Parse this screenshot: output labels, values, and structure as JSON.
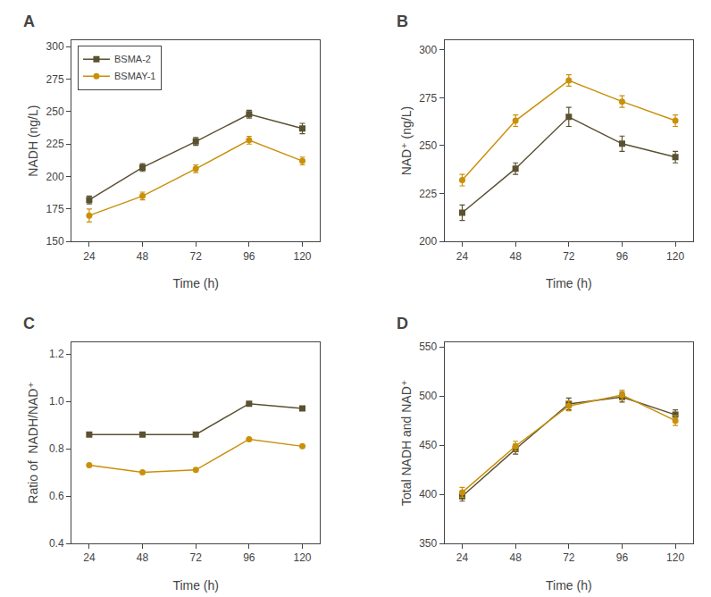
{
  "chart_data": [
    {
      "type": "line",
      "annotations": [
        "A"
      ],
      "xlabel": "Time (h)",
      "ylabel": "NADH (ng/L)",
      "x": [
        24,
        48,
        72,
        96,
        120
      ],
      "xlim": [
        16,
        128
      ],
      "xticks": [
        24,
        48,
        72,
        96,
        120
      ],
      "ylim": [
        150,
        305
      ],
      "yticks": [
        150,
        175,
        200,
        225,
        250,
        275,
        300
      ],
      "grid": false,
      "legend": "upper left",
      "series": [
        {
          "name": "BSMA-2",
          "color": "#5a5130",
          "marker": "square",
          "values": [
            182,
            207,
            227,
            248,
            237
          ],
          "error": [
            3,
            3,
            3,
            3,
            4
          ]
        },
        {
          "name": "BSMAY-1",
          "color": "#c9900a",
          "marker": "circle",
          "values": [
            170,
            185,
            206,
            228,
            212
          ],
          "error": [
            5,
            3,
            3,
            3,
            3
          ]
        }
      ]
    },
    {
      "type": "line",
      "annotations": [
        "B"
      ],
      "xlabel": "Time (h)",
      "ylabel": "NAD⁺ (ng/L)",
      "x": [
        24,
        48,
        72,
        96,
        120
      ],
      "xlim": [
        16,
        128
      ],
      "xticks": [
        24,
        48,
        72,
        96,
        120
      ],
      "ylim": [
        200,
        305
      ],
      "yticks": [
        200,
        225,
        250,
        275,
        300
      ],
      "grid": false,
      "series": [
        {
          "name": "BSMA-2",
          "color": "#5a5130",
          "marker": "square",
          "values": [
            215,
            238,
            265,
            251,
            244
          ],
          "error": [
            4,
            3,
            5,
            4,
            3
          ]
        },
        {
          "name": "BSMAY-1",
          "color": "#c9900a",
          "marker": "circle",
          "values": [
            232,
            263,
            284,
            273,
            263
          ],
          "error": [
            3,
            3,
            3,
            3,
            3
          ]
        }
      ]
    },
    {
      "type": "line",
      "annotations": [
        "C"
      ],
      "xlabel": "Time (h)",
      "ylabel": "Ratio of  NADH/NAD⁺",
      "x": [
        24,
        48,
        72,
        96,
        120
      ],
      "xlim": [
        16,
        128
      ],
      "xticks": [
        24,
        48,
        72,
        96,
        120
      ],
      "ylim": [
        0.4,
        1.25
      ],
      "yticks": [
        0.4,
        0.6,
        0.8,
        {
          "value": 1.0,
          "label": "1.0"
        },
        1.2
      ],
      "grid": false,
      "series": [
        {
          "name": "BSMA-2",
          "color": "#5a5130",
          "marker": "square",
          "values": [
            0.86,
            0.86,
            0.86,
            0.99,
            0.97
          ],
          "error": [
            0.0,
            0.0,
            0.0,
            0.0,
            0.0
          ]
        },
        {
          "name": "BSMAY-1",
          "color": "#c9900a",
          "marker": "circle",
          "values": [
            0.73,
            0.7,
            0.71,
            0.84,
            0.81
          ],
          "error": [
            0.0,
            0.0,
            0.0,
            0.0,
            0.0
          ]
        }
      ]
    },
    {
      "type": "line",
      "annotations": [
        "D"
      ],
      "xlabel": "Time (h)",
      "ylabel": "Total NADH and NAD⁺",
      "x": [
        24,
        48,
        72,
        96,
        120
      ],
      "xlim": [
        16,
        128
      ],
      "xticks": [
        24,
        48,
        72,
        96,
        120
      ],
      "ylim": [
        350,
        555
      ],
      "yticks": [
        350,
        400,
        450,
        500,
        550
      ],
      "grid": false,
      "series": [
        {
          "name": "BSMA-2",
          "color": "#5a5130",
          "marker": "square",
          "values": [
            398,
            446,
            492,
            499,
            481
          ],
          "error": [
            5,
            5,
            6,
            5,
            5
          ]
        },
        {
          "name": "BSMAY-1",
          "color": "#c9900a",
          "marker": "circle",
          "values": [
            402,
            449,
            490,
            501,
            475
          ],
          "error": [
            5,
            5,
            5,
            5,
            5
          ]
        }
      ]
    }
  ]
}
